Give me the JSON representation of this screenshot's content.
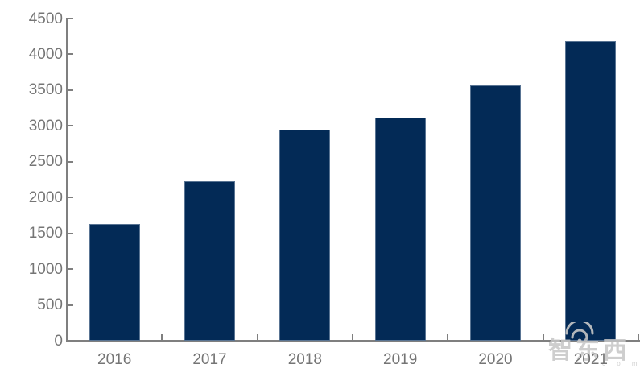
{
  "chart_data": {
    "type": "bar",
    "title": "",
    "xlabel": "",
    "ylabel": "",
    "categories": [
      "2016",
      "2017",
      "2018",
      "2019",
      "2020",
      "2021"
    ],
    "values": [
      1630,
      2230,
      2950,
      3120,
      3570,
      4180
    ],
    "ylim": [
      0,
      4500
    ],
    "ytick_interval": 500,
    "ytick_labels": [
      "0",
      "500",
      "1000",
      "1500",
      "2000",
      "2500",
      "3000",
      "3500",
      "4000",
      "4500"
    ],
    "grid": false,
    "legend": null
  },
  "colors": {
    "bar": "#032a56",
    "axis": "#7f7f7f",
    "tick_label": "#757575",
    "background": "#ffffff",
    "watermark": "#c6c6c6"
  },
  "watermark": {
    "text": "智东西",
    "subtext": "c o m",
    "icon": "wifi-signal-icon"
  }
}
